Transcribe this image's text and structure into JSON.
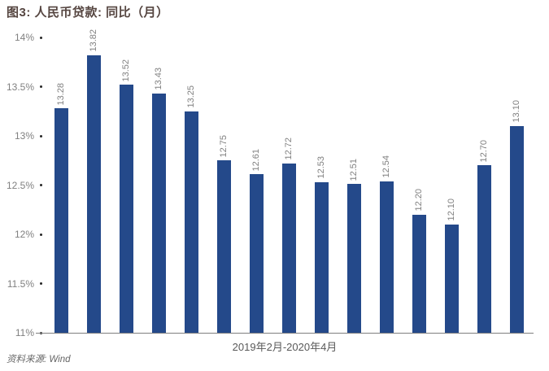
{
  "title": "图3: 人民币贷款: 同比（月）",
  "source_note": "资料来源: Wind",
  "chart_data": {
    "type": "bar",
    "title": "图3: 人民币贷款: 同比（月）",
    "xlabel": "2019年2月-2020年4月",
    "ylabel": "",
    "values": [
      13.28,
      13.82,
      13.52,
      13.43,
      13.25,
      12.75,
      12.61,
      12.72,
      12.53,
      12.51,
      12.54,
      12.2,
      12.1,
      12.7,
      13.1
    ],
    "value_labels": [
      "13.28",
      "13.82",
      "13.52",
      "13.43",
      "13.25",
      "12.75",
      "12.61",
      "12.72",
      "12.53",
      "12.51",
      "12.54",
      "12.20",
      "12.10",
      "12.70",
      "13.10"
    ],
    "ylim": [
      11,
      14
    ],
    "yticks": [
      11,
      11.5,
      12,
      12.5,
      13,
      13.5,
      14
    ],
    "ytick_labels": [
      "11%",
      "11.5%",
      "12%",
      "12.5%",
      "13%",
      "13.5%",
      "14%"
    ],
    "grid": false,
    "legend": null,
    "bar_color": "#24498A",
    "value_label_color": "#808080",
    "tick_label_color": "#808080",
    "axis_color": "#7F7F7F"
  }
}
